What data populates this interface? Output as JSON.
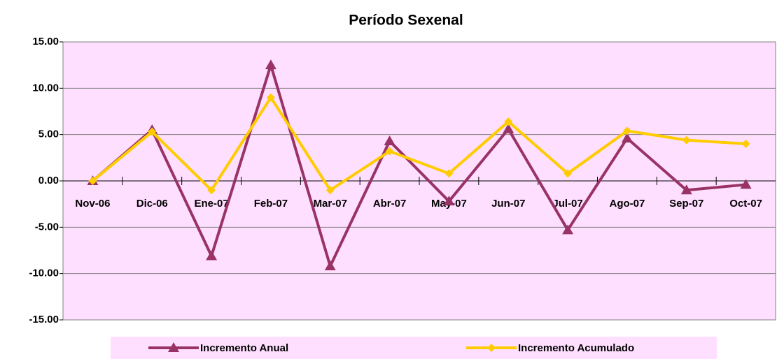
{
  "chart_data": {
    "type": "line",
    "title": "Período Sexenal",
    "categories": [
      "Nov-06",
      "Dic-06",
      "Ene-07",
      "Feb-07",
      "Mar-07",
      "Abr-07",
      "May-07",
      "Jun-07",
      "Jul-07",
      "Ago-07",
      "Sep-07",
      "Oct-07"
    ],
    "series": [
      {
        "name": "Incremento Anual",
        "color": "#993366",
        "marker": "triangle",
        "values": [
          0.0,
          5.5,
          -8.1,
          12.5,
          -9.2,
          4.3,
          -2.2,
          5.6,
          -5.3,
          4.6,
          -1.0,
          -0.4
        ]
      },
      {
        "name": "Incremento Acumulado",
        "color": "#ffcc00",
        "marker": "diamond",
        "values": [
          0.0,
          5.3,
          -1.0,
          9.0,
          -1.0,
          3.2,
          0.8,
          6.4,
          0.8,
          5.4,
          4.4,
          4.0
        ]
      }
    ],
    "ylim": [
      -15,
      15
    ],
    "yticks": [
      {
        "value": -15,
        "label": "-15.00"
      },
      {
        "value": -10,
        "label": "-10.00"
      },
      {
        "value": -5,
        "label": "-5.00"
      },
      {
        "value": 0,
        "label": "0.00"
      },
      {
        "value": 5,
        "label": "5.00"
      },
      {
        "value": 10,
        "label": "10.00"
      },
      {
        "value": 15,
        "label": "15.00"
      }
    ],
    "grid": true,
    "legend": "bottom",
    "plot_background": "#ffdfff"
  }
}
